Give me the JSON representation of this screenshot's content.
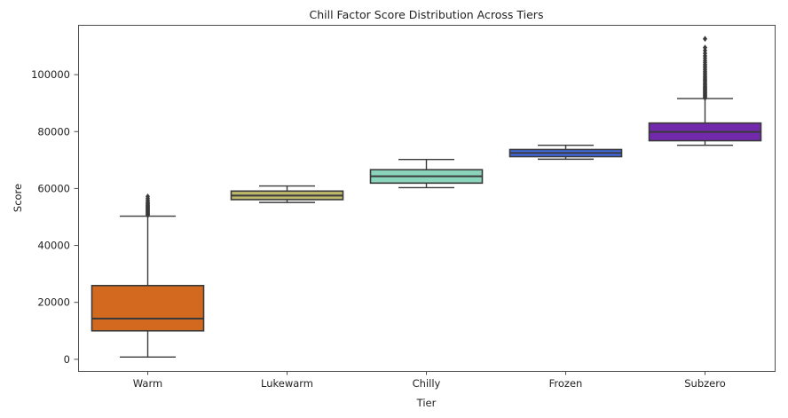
{
  "figure": {
    "title": "Chill Factor Score Distribution Across Tiers"
  },
  "chart_data": {
    "type": "box",
    "title": "Chill Factor Score Distribution Across Tiers",
    "xlabel": "Tier",
    "ylabel": "Score",
    "categories": [
      "Warm",
      "Lukewarm",
      "Chilly",
      "Frozen",
      "Subzero"
    ],
    "yticks": [
      0,
      20000,
      40000,
      60000,
      80000,
      100000
    ],
    "ylim": [
      -4100,
      117500
    ],
    "grid": false,
    "legend": "none",
    "colors": {
      "edge": "#3a3a3a",
      "spine": "#4d4d4d",
      "text": "#1f1f1f"
    },
    "series": [
      {
        "name": "Warm",
        "color": "#d2691e",
        "whisker_low": 800,
        "q1": 10000,
        "median": 14300,
        "q3": 25900,
        "whisker_high": 50300,
        "outliers": [
          50600,
          50850,
          51100,
          51350,
          51600,
          51850,
          52100,
          52350,
          52600,
          52850,
          53100,
          53350,
          53600,
          53850,
          54100,
          54400,
          54700,
          55000,
          55400,
          55900,
          56500,
          57200
        ]
      },
      {
        "name": "Lukewarm",
        "color": "#bdb76b",
        "whisker_low": 55100,
        "q1": 56100,
        "median": 57500,
        "q3": 59100,
        "whisker_high": 60900,
        "outliers": []
      },
      {
        "name": "Chilly",
        "color": "#8bd4bc",
        "whisker_low": 60300,
        "q1": 61900,
        "median": 64300,
        "q3": 66600,
        "whisker_high": 70200,
        "outliers": []
      },
      {
        "name": "Frozen",
        "color": "#4169e1",
        "whisker_low": 70300,
        "q1": 71200,
        "median": 72500,
        "q3": 73700,
        "whisker_high": 75200,
        "outliers": []
      },
      {
        "name": "Subzero",
        "color": "#7229ac",
        "whisker_low": 75200,
        "q1": 76800,
        "median": 79900,
        "q3": 83000,
        "whisker_high": 91600,
        "outliers": [
          91800,
          92100,
          92400,
          92700,
          93000,
          93300,
          93600,
          93900,
          94200,
          94500,
          94800,
          95100,
          95400,
          95700,
          96000,
          96400,
          96800,
          97200,
          97600,
          98000,
          98400,
          98800,
          99200,
          99700,
          100200,
          100700,
          101200,
          101800,
          102400,
          103000,
          103600,
          104300,
          105000,
          105800,
          106600,
          107500,
          108500,
          109500,
          112600
        ]
      }
    ]
  }
}
